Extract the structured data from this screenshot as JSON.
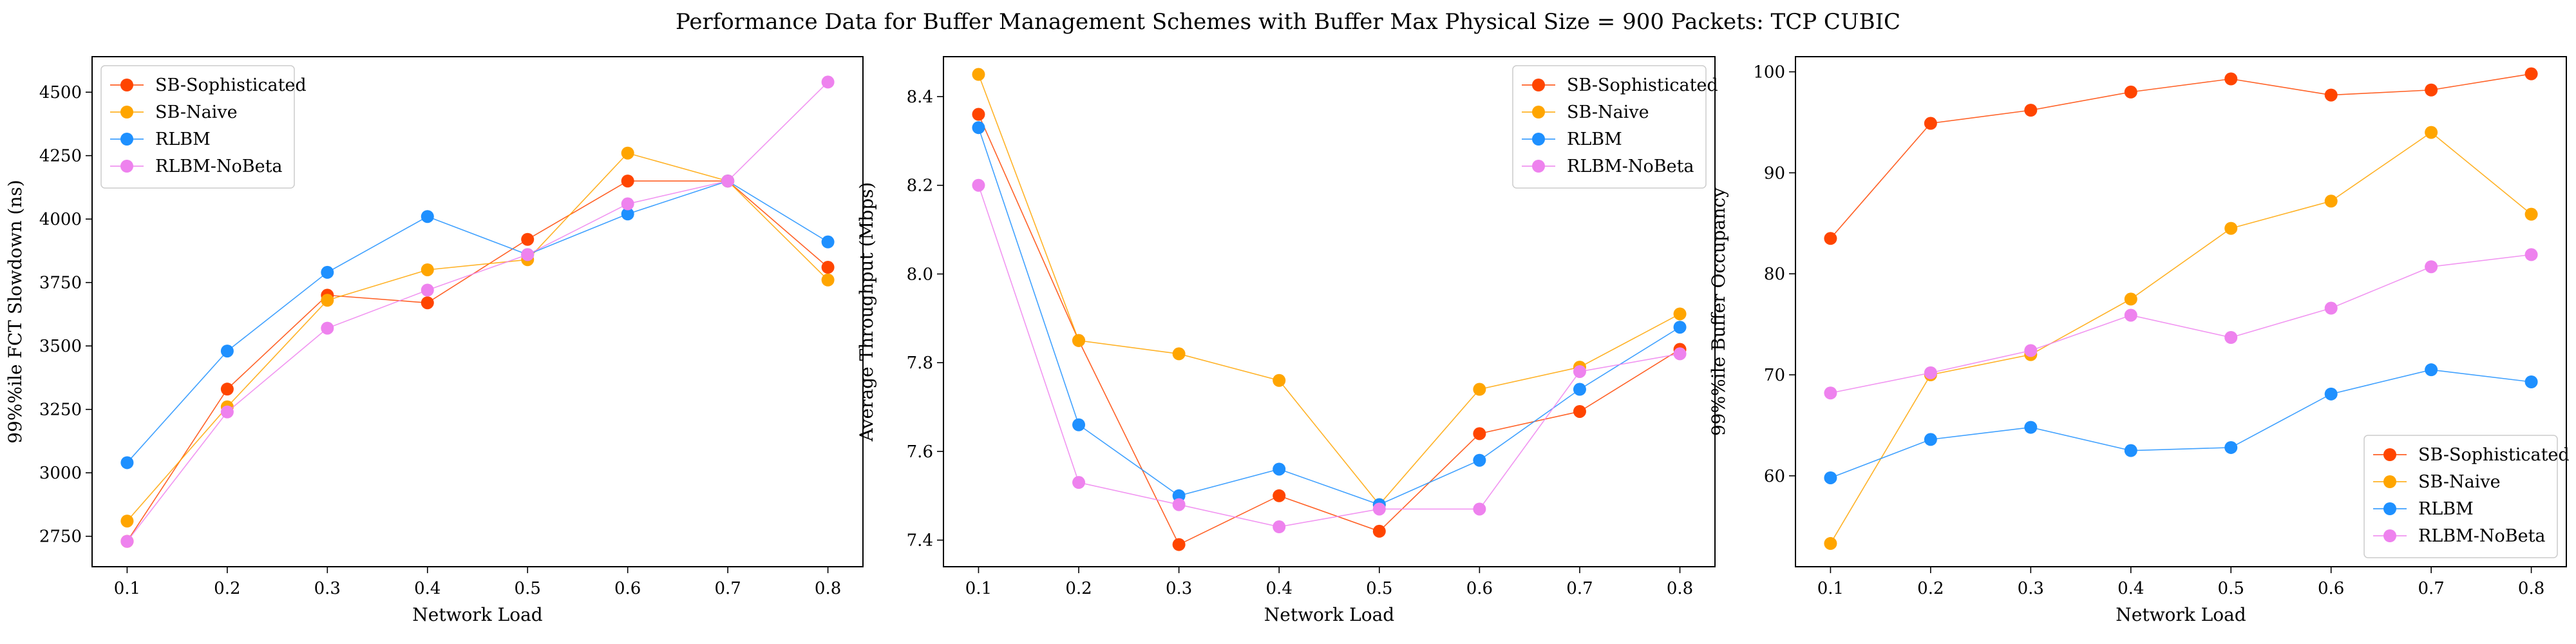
{
  "figure": {
    "title": "Performance Data for Buffer Management Schemes with Buffer Max Physical Size = 900 Packets: TCP CUBIC"
  },
  "colors": {
    "SB-Sophisticated": "#FF4500",
    "SB-Naive": "#FFA500",
    "RLBM": "#1E90FF",
    "RLBM-NoBeta": "#EE82EE"
  },
  "chart_data": [
    {
      "type": "line",
      "xlabel": "Network Load",
      "ylabel": "99%%ile FCT Slowdown (ns)",
      "x": [
        0.1,
        0.2,
        0.3,
        0.4,
        0.5,
        0.6,
        0.7,
        0.8
      ],
      "xticks": [
        "0.1",
        "0.2",
        "0.3",
        "0.4",
        "0.5",
        "0.6",
        "0.7",
        "0.8"
      ],
      "xlim": [
        0.065,
        0.835
      ],
      "ylim": [
        2630,
        4640
      ],
      "yticks": [
        2750,
        3000,
        3250,
        3500,
        3750,
        4000,
        4250,
        4500
      ],
      "ytick_labels": [
        "2750",
        "3000",
        "3250",
        "3500",
        "3750",
        "4000",
        "4250",
        "4500"
      ],
      "legend": "upper-left",
      "series": [
        {
          "name": "SB-Sophisticated",
          "values": [
            2730,
            3330,
            3700,
            3670,
            3920,
            4150,
            4150,
            3810
          ]
        },
        {
          "name": "SB-Naive",
          "values": [
            2810,
            3260,
            3680,
            3800,
            3840,
            4260,
            4150,
            3760
          ]
        },
        {
          "name": "RLBM",
          "values": [
            3040,
            3480,
            3790,
            4010,
            3860,
            4020,
            4150,
            3910
          ]
        },
        {
          "name": "RLBM-NoBeta",
          "values": [
            2730,
            3240,
            3570,
            3720,
            3860,
            4060,
            4150,
            4540
          ]
        }
      ]
    },
    {
      "type": "line",
      "xlabel": "Network Load",
      "ylabel": "Average Throughput (Mbps)",
      "x": [
        0.1,
        0.2,
        0.3,
        0.4,
        0.5,
        0.6,
        0.7,
        0.8
      ],
      "xticks": [
        "0.1",
        "0.2",
        "0.3",
        "0.4",
        "0.5",
        "0.6",
        "0.7",
        "0.8"
      ],
      "xlim": [
        0.065,
        0.835
      ],
      "ylim": [
        7.34,
        8.49
      ],
      "yticks": [
        7.4,
        7.6,
        7.8,
        8.0,
        8.2,
        8.4
      ],
      "ytick_labels": [
        "7.4",
        "7.6",
        "7.8",
        "8.0",
        "8.2",
        "8.4"
      ],
      "legend": "upper-right",
      "series": [
        {
          "name": "SB-Sophisticated",
          "values": [
            8.36,
            7.85,
            7.39,
            7.5,
            7.42,
            7.64,
            7.69,
            7.83
          ]
        },
        {
          "name": "SB-Naive",
          "values": [
            8.45,
            7.85,
            7.82,
            7.76,
            7.48,
            7.74,
            7.79,
            7.91
          ]
        },
        {
          "name": "RLBM",
          "values": [
            8.33,
            7.66,
            7.5,
            7.56,
            7.48,
            7.58,
            7.74,
            7.88
          ]
        },
        {
          "name": "RLBM-NoBeta",
          "values": [
            8.2,
            7.53,
            7.48,
            7.43,
            7.47,
            7.47,
            7.78,
            7.82
          ]
        }
      ]
    },
    {
      "type": "line",
      "xlabel": "Network Load",
      "ylabel": "99%%ile Buffer Occupancy",
      "x": [
        0.1,
        0.2,
        0.3,
        0.4,
        0.5,
        0.6,
        0.7,
        0.8
      ],
      "xticks": [
        "0.1",
        "0.2",
        "0.3",
        "0.4",
        "0.5",
        "0.6",
        "0.7",
        "0.8"
      ],
      "xlim": [
        0.065,
        0.835
      ],
      "ylim": [
        51,
        101.5
      ],
      "yticks": [
        60,
        70,
        80,
        90,
        100
      ],
      "ytick_labels": [
        "60",
        "70",
        "80",
        "90",
        "100"
      ],
      "legend": "lower-right",
      "series": [
        {
          "name": "SB-Sophisticated",
          "values": [
            83.5,
            94.9,
            96.2,
            98.0,
            99.3,
            97.7,
            98.2,
            99.8
          ]
        },
        {
          "name": "SB-Naive",
          "values": [
            53.3,
            70.0,
            72.0,
            77.5,
            84.5,
            87.2,
            94.0,
            85.9
          ]
        },
        {
          "name": "RLBM",
          "values": [
            59.8,
            63.6,
            64.8,
            62.5,
            62.8,
            68.1,
            70.5,
            69.3
          ]
        },
        {
          "name": "RLBM-NoBeta",
          "values": [
            68.2,
            70.2,
            72.4,
            75.9,
            73.7,
            76.6,
            80.7,
            81.9
          ]
        }
      ]
    }
  ]
}
